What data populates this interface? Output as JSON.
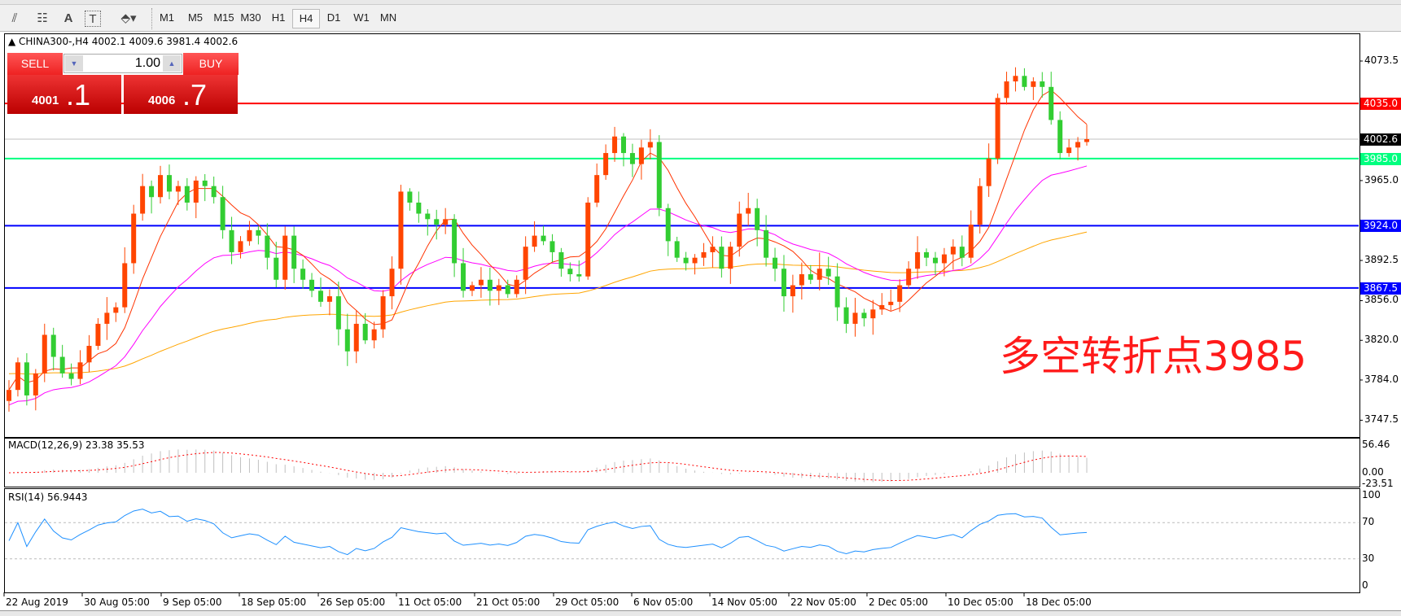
{
  "toolbar": {
    "icons": [
      "elliott-wave-icon",
      "fibonacci-fan-icon",
      "text-icon",
      "text-label-icon",
      "arrows-icon"
    ],
    "icon_glyphs": {
      "text": "A",
      "text_label": "T"
    },
    "timeframes": [
      "M1",
      "M5",
      "M15",
      "M30",
      "H1",
      "H4",
      "D1",
      "W1",
      "MN"
    ],
    "active_timeframe": "H4"
  },
  "chart": {
    "symbol_line": "CHINA300-,H4  4002.1 4009.6 3981.4 4002.6",
    "trade_panel": {
      "sell_label": "SELL",
      "buy_label": "BUY",
      "lot": "1.00",
      "sell_price_main": "4001",
      "sell_price_big": ".1",
      "buy_price_main": "4006",
      "buy_price_big": ".7"
    },
    "annotation": "多空转折点3985",
    "price_axis": [
      "4073.5",
      "3965.0",
      "3892.5",
      "3856.0",
      "3820.0",
      "3784.0",
      "3747.5"
    ],
    "hlines": [
      {
        "price": 4035.0,
        "label": "4035.0",
        "color": "#ff0000"
      },
      {
        "price": 4002.6,
        "label": "4002.6",
        "color": "#000000",
        "line_color": "#c0c0c0"
      },
      {
        "price": 3985.0,
        "label": "3985.0",
        "color": "#00ff7f"
      },
      {
        "price": 3924.0,
        "label": "3924.0",
        "color": "#0000ff"
      },
      {
        "price": 3867.5,
        "label": "3867.5",
        "color": "#0000ff"
      }
    ],
    "dates": [
      "22 Aug 2019",
      "30 Aug 05:00",
      "9 Sep 05:00",
      "18 Sep 05:00",
      "26 Sep 05:00",
      "11 Oct 05:00",
      "21 Oct 05:00",
      "29 Oct 05:00",
      "6 Nov 05:00",
      "14 Nov 05:00",
      "22 Nov 05:00",
      "2 Dec 05:00",
      "10 Dec 05:00",
      "18 Dec 05:00"
    ],
    "colors": {
      "up": "#ff4500",
      "down": "#32cd32",
      "ma_fast": "#ff3300",
      "ma_mid": "#ff00ff",
      "ma_slow": "#ffa500",
      "rsi": "#1e90ff",
      "macd_signal": "#ff0000",
      "macd_hist": "#c0c0c0"
    }
  },
  "macd": {
    "label": "MACD(12,26,9) 23.38 35.53",
    "axis": [
      "56.46",
      "0.00",
      "-23.51"
    ]
  },
  "rsi": {
    "label": "RSI(14) 56.9443",
    "axis": [
      "100",
      "70",
      "30",
      "0"
    ]
  },
  "chart_data": {
    "type": "candlestick",
    "price_range": [
      3747.5,
      4073.5
    ],
    "closes": [
      3775,
      3800,
      3770,
      3790,
      3825,
      3805,
      3790,
      3785,
      3800,
      3815,
      3835,
      3845,
      3850,
      3890,
      3935,
      3960,
      3950,
      3970,
      3955,
      3960,
      3945,
      3965,
      3960,
      3950,
      3920,
      3900,
      3910,
      3920,
      3915,
      3895,
      3875,
      3915,
      3885,
      3875,
      3865,
      3855,
      3860,
      3830,
      3810,
      3835,
      3820,
      3830,
      3860,
      3885,
      3955,
      3945,
      3935,
      3930,
      3925,
      3930,
      3890,
      3865,
      3870,
      3875,
      3865,
      3870,
      3862,
      3875,
      3905,
      3915,
      3910,
      3900,
      3885,
      3880,
      3878,
      3945,
      3970,
      3990,
      4005,
      3990,
      3980,
      3995,
      4000,
      3940,
      3910,
      3895,
      3890,
      3895,
      3900,
      3905,
      3885,
      3905,
      3935,
      3940,
      3920,
      3895,
      3885,
      3860,
      3870,
      3880,
      3875,
      3885,
      3878,
      3850,
      3835,
      3845,
      3840,
      3848,
      3852,
      3855,
      3870,
      3885,
      3900,
      3895,
      3890,
      3898,
      3905,
      3895,
      3925,
      3960,
      3985,
      4040,
      4055,
      4060,
      4050,
      4055,
      4050,
      4020,
      3990,
      3995,
      4000,
      4002.6
    ]
  }
}
